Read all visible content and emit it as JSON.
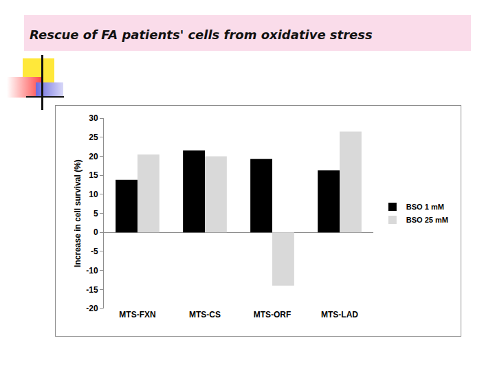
{
  "chart_data": {
    "type": "bar",
    "title": "Rescue of FA patients' cells from oxidative stress",
    "y_label": "Increase in cell survival (%)",
    "categories": [
      "MTS-FXN",
      "MTS-CS",
      "MTS-ORF",
      "MTS-LAD"
    ],
    "series": [
      {
        "name": "BSO 1 mM",
        "color": "#000000",
        "values": [
          13.8,
          21.5,
          19.3,
          16.3
        ]
      },
      {
        "name": "BSO 25 mM",
        "color": "#d9d9d9",
        "values": [
          20.5,
          20.0,
          -14.0,
          26.5
        ]
      }
    ],
    "ylim": [
      -20,
      30
    ],
    "yticks": [
      -20,
      -15,
      -10,
      -5,
      0,
      5,
      10,
      15,
      20,
      25,
      30
    ],
    "grid": false,
    "legend": "right"
  }
}
